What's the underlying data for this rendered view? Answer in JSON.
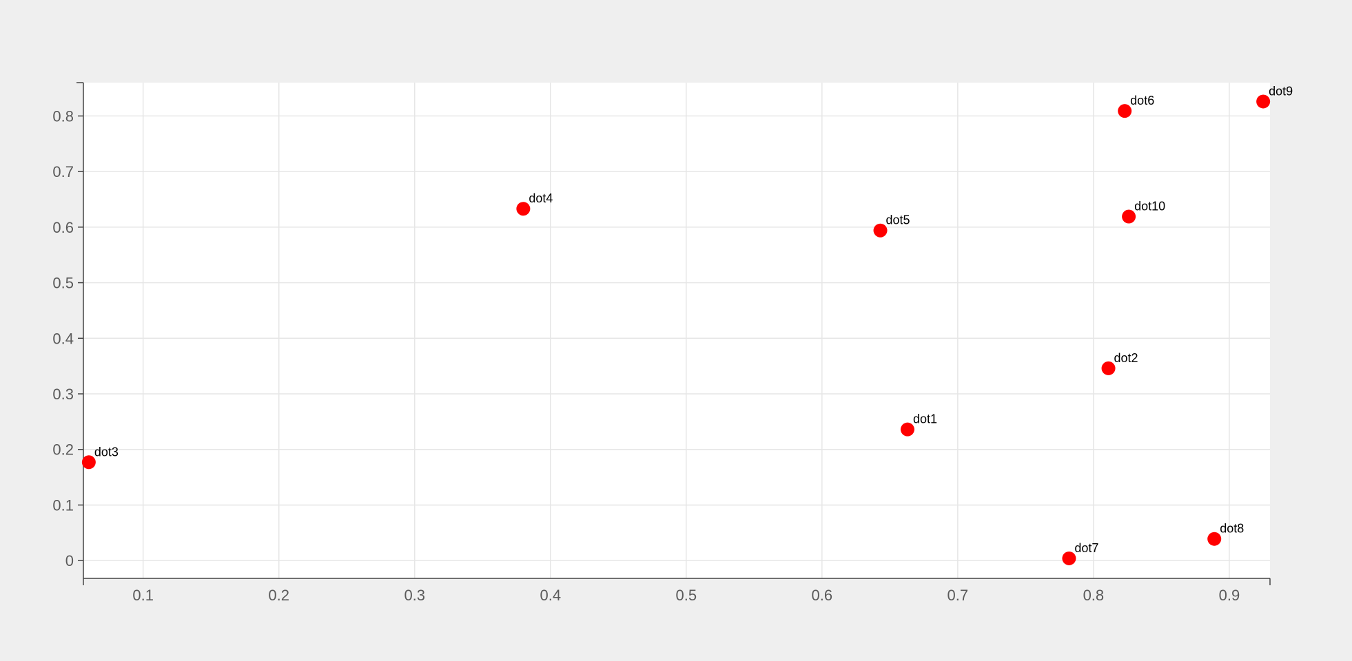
{
  "chart_data": {
    "type": "scatter",
    "title": "",
    "xlabel": "",
    "ylabel": "",
    "xlim": [
      0.056,
      0.93
    ],
    "ylim": [
      -0.032,
      0.86
    ],
    "x_ticks": [
      0.1,
      0.2,
      0.3,
      0.4,
      0.5,
      0.6,
      0.7,
      0.8,
      0.9
    ],
    "y_ticks": [
      0,
      0.1,
      0.2,
      0.3,
      0.4,
      0.5,
      0.6,
      0.7,
      0.8
    ],
    "x_tick_labels": [
      "0.1",
      "0.2",
      "0.3",
      "0.4",
      "0.5",
      "0.6",
      "0.7",
      "0.8",
      "0.9"
    ],
    "y_tick_labels": [
      "0",
      "0.1",
      "0.2",
      "0.3",
      "0.4",
      "0.5",
      "0.6",
      "0.7",
      "0.8"
    ],
    "grid": true,
    "legend": "none",
    "point_color": "#ff0000",
    "points": [
      {
        "label": "dot1",
        "x": 0.663,
        "y": 0.236
      },
      {
        "label": "dot2",
        "x": 0.811,
        "y": 0.346
      },
      {
        "label": "dot3",
        "x": 0.06,
        "y": 0.177
      },
      {
        "label": "dot4",
        "x": 0.38,
        "y": 0.633
      },
      {
        "label": "dot5",
        "x": 0.643,
        "y": 0.594
      },
      {
        "label": "dot6",
        "x": 0.823,
        "y": 0.809
      },
      {
        "label": "dot7",
        "x": 0.782,
        "y": 0.004
      },
      {
        "label": "dot8",
        "x": 0.889,
        "y": 0.039
      },
      {
        "label": "dot9",
        "x": 0.925,
        "y": 0.826
      },
      {
        "label": "dot10",
        "x": 0.826,
        "y": 0.619
      }
    ]
  }
}
